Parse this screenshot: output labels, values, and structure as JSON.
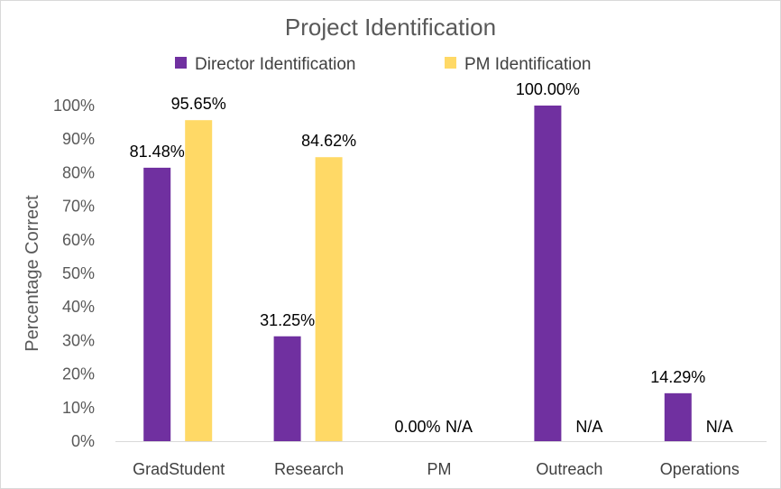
{
  "chart_data": {
    "type": "bar",
    "title": "Project Identification",
    "xlabel": "",
    "ylabel": "Percentage Correct",
    "ylim": [
      0,
      100
    ],
    "yticks": [
      "0%",
      "10%",
      "20%",
      "30%",
      "40%",
      "50%",
      "60%",
      "70%",
      "80%",
      "90%",
      "100%"
    ],
    "categories": [
      "GradStudent",
      "Research",
      "PM",
      "Outreach",
      "Operations"
    ],
    "legend_position": "top",
    "grid": false,
    "series": [
      {
        "name": "Director Identification",
        "color": "#7030a0",
        "values": [
          81.48,
          31.25,
          0.0,
          100.0,
          14.29
        ],
        "labels": [
          "81.48%",
          "31.25%",
          "0.00%",
          "100.00%",
          "14.29%"
        ]
      },
      {
        "name": "PM Identification",
        "color": "#ffd966",
        "values": [
          95.65,
          84.62,
          null,
          null,
          null
        ],
        "labels": [
          "95.65%",
          "84.62%",
          "N/A",
          "N/A",
          "N/A"
        ]
      }
    ]
  }
}
